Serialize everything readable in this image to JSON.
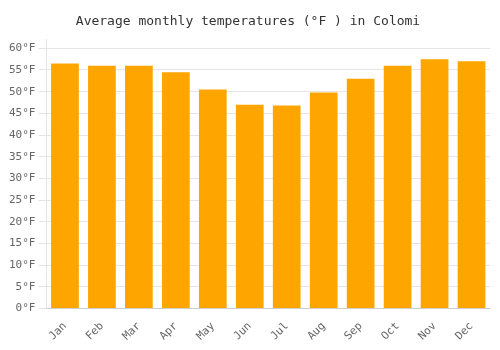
{
  "chart_data": {
    "type": "bar",
    "title": "Average monthly temperatures (°F ) in Colomi",
    "categories": [
      "Jan",
      "Feb",
      "Mar",
      "Apr",
      "May",
      "Jun",
      "Jul",
      "Aug",
      "Sep",
      "Oct",
      "Nov",
      "Dec"
    ],
    "values": [
      56.5,
      56.0,
      56.0,
      54.5,
      50.5,
      47.0,
      46.8,
      49.8,
      53.0,
      56.0,
      57.5,
      57.0
    ],
    "color": "#FFA500",
    "ylim": [
      0,
      62
    ],
    "yticks": [
      {
        "value": 0,
        "label": "0°F"
      },
      {
        "value": 5,
        "label": "5°F"
      },
      {
        "value": 10,
        "label": "10°F"
      },
      {
        "value": 15,
        "label": "15°F"
      },
      {
        "value": 20,
        "label": "20°F"
      },
      {
        "value": 25,
        "label": "25°F"
      },
      {
        "value": 30,
        "label": "30°F"
      },
      {
        "value": 35,
        "label": "35°F"
      },
      {
        "value": 40,
        "label": "40°F"
      },
      {
        "value": 45,
        "label": "45°F"
      },
      {
        "value": 50,
        "label": "50°F"
      },
      {
        "value": 55,
        "label": "55°F"
      },
      {
        "value": 60,
        "label": "60°F"
      }
    ],
    "grid": true
  }
}
